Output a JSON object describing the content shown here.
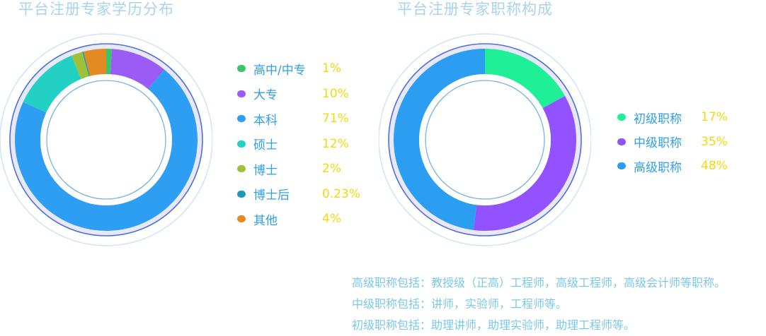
{
  "chart_data": [
    {
      "type": "pie",
      "title": "平台注册专家学历分布",
      "categories": [
        "高中/中专",
        "大专",
        "本科",
        "硕士",
        "博士",
        "博士后",
        "其他"
      ],
      "values": [
        1,
        10,
        71,
        12,
        2,
        0.23,
        4
      ],
      "value_labels": [
        "1%",
        "10%",
        "71%",
        "12%",
        "2%",
        "0.23%",
        "4%"
      ],
      "colors": [
        "#3cc46a",
        "#9b5cf5",
        "#2d9ef2",
        "#22d1c4",
        "#9dc13a",
        "#1a9bb5",
        "#e38a23"
      ],
      "legend_position": "right"
    },
    {
      "type": "pie",
      "title": "平台注册专家职称构成",
      "categories": [
        "初级职称",
        "中级职称",
        "高级职称"
      ],
      "values": [
        17,
        35,
        48
      ],
      "value_labels": [
        "17%",
        "35%",
        "48%"
      ],
      "colors": [
        "#1fef96",
        "#9352ff",
        "#2b9ef2"
      ],
      "legend_position": "right"
    }
  ],
  "notes": [
    "高级职称包括：教授级（正高）工程师，高级工程师，高级会计师等职称。",
    "中级职称包括：讲师，实验师，工程师等。",
    "初级职称包括：助理讲师，助理实验师，助理工程师等。"
  ]
}
